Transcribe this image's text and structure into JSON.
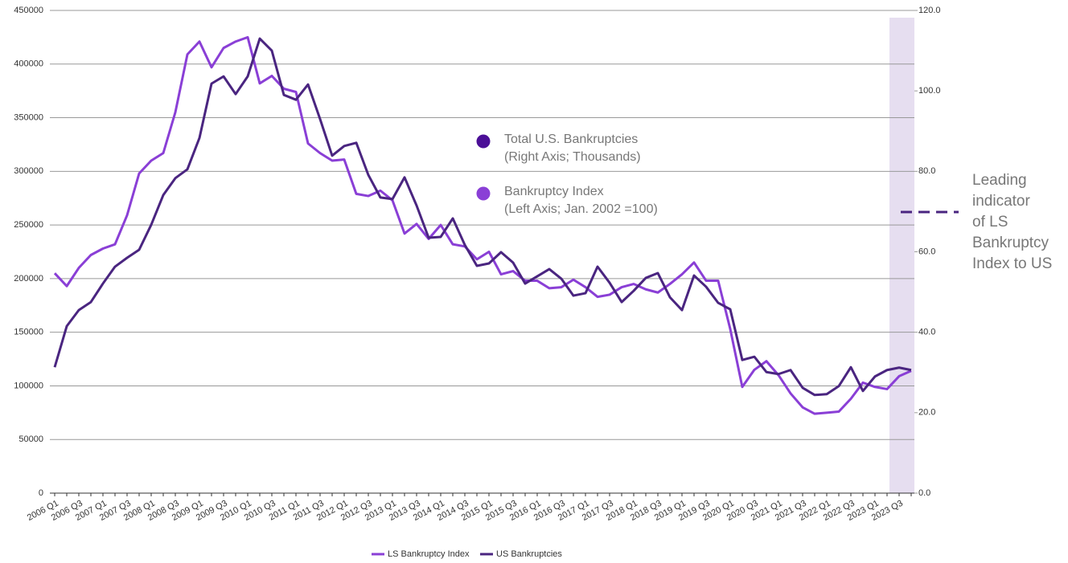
{
  "chart_data": {
    "type": "line",
    "categories": [
      "2006 Q1",
      null,
      "2006 Q3",
      null,
      "2007 Q1",
      null,
      "2007 Q3",
      null,
      "2008 Q1",
      null,
      "2008 Q3",
      null,
      "2009 Q1",
      null,
      "2009 Q3",
      null,
      "2010 Q1",
      null,
      "2010 Q3",
      null,
      "2011 Q1",
      null,
      "2011 Q3",
      null,
      "2012 Q1",
      null,
      "2012 Q3",
      null,
      "2013 Q1",
      null,
      "2013 Q3",
      null,
      "2014 Q1",
      null,
      "2014 Q3",
      null,
      "2015 Q1",
      null,
      "2015 Q3",
      null,
      "2016 Q1",
      null,
      "2016 Q3",
      null,
      "2017 Q1",
      null,
      "2017 Q3",
      null,
      "2018 Q1",
      null,
      "2018 Q3",
      null,
      "2019 Q1",
      null,
      "2019 Q3",
      null,
      "2020 Q1",
      null,
      "2020 Q3",
      null,
      "2021 Q1",
      null,
      "2021 Q3",
      null,
      "2022 Q1",
      null,
      "2022 Q3",
      null,
      "2023 Q1",
      null,
      "2023 Q3",
      null
    ],
    "series": [
      {
        "name": "LS Bankruptcy Index",
        "color": "#8a3fd6",
        "values": [
          205000,
          193000,
          210000,
          222000,
          228000,
          232000,
          259000,
          298000,
          310000,
          317000,
          355000,
          409000,
          421000,
          397000,
          415000,
          421000,
          425000,
          382000,
          389000,
          377000,
          374000,
          326000,
          317000,
          310000,
          311000,
          279000,
          277000,
          282000,
          273000,
          242000,
          251000,
          237000,
          250000,
          232000,
          230000,
          218000,
          225000,
          204000,
          207000,
          198000,
          198000,
          191000,
          192000,
          199000,
          192000,
          183000,
          185000,
          192000,
          195000,
          190000,
          187000,
          195000,
          204000,
          215000,
          198000,
          198000,
          153000,
          99000,
          115000,
          123000,
          110000,
          93000,
          80000,
          74000,
          75000,
          76000,
          88000,
          103000,
          99000,
          97000,
          109000,
          114000
        ]
      },
      {
        "name": "US Bankruptcies",
        "color": "#4a2580",
        "axis": "y2",
        "values": [
          31.3,
          41.5,
          45.5,
          47.5,
          52.1,
          56.3,
          58.5,
          60.5,
          66.7,
          74.1,
          78.3,
          80.5,
          88.3,
          101.8,
          103.6,
          99.2,
          103.6,
          113.0,
          110.0,
          99.0,
          97.8,
          101.6,
          93.0,
          83.9,
          86.3,
          87.1,
          79.1,
          73.5,
          73.1,
          78.5,
          71.5,
          63.5,
          63.7,
          68.3,
          61.7,
          56.5,
          57.1,
          59.9,
          57.3,
          52.1,
          53.9,
          55.7,
          53.3,
          49.1,
          49.7,
          56.3,
          52.3,
          47.5,
          50.3,
          53.5,
          54.7,
          48.7,
          45.5,
          54.1,
          51.3,
          47.3,
          45.7,
          33.1,
          33.9,
          30.1,
          29.6,
          30.6,
          26.2,
          24.4,
          24.6,
          26.6,
          31.3,
          25.4,
          29.0,
          30.6,
          31.2,
          30.6
        ]
      }
    ],
    "ylim": [
      0,
      450000
    ],
    "yticks": [
      0,
      50000,
      100000,
      150000,
      200000,
      250000,
      300000,
      350000,
      400000,
      450000
    ],
    "y2lim": [
      0,
      120
    ],
    "y2ticks": [
      {
        "value": 0,
        "label": "0.0"
      },
      {
        "value": 20,
        "label": "20.0"
      },
      {
        "value": 40,
        "label": "40.0"
      },
      {
        "value": 60,
        "label": "60.0"
      },
      {
        "value": 80,
        "label": "80.0"
      },
      {
        "value": 100,
        "label": "100.0"
      },
      {
        "value": 120,
        "label": "120.0"
      }
    ],
    "grid": true,
    "annotations": [
      {
        "title": "Total U.S. Bankruptcies",
        "subtitle": "(Right Axis; Thousands)",
        "color": "#4b0f97"
      },
      {
        "title": "Bankruptcy Index",
        "subtitle": "(Left Axis; Jan. 2002 =100)",
        "color": "#8a3fd6"
      }
    ],
    "side_note": [
      "Leading",
      "indicator",
      "of LS",
      "Bankruptcy",
      "Index to US"
    ]
  }
}
